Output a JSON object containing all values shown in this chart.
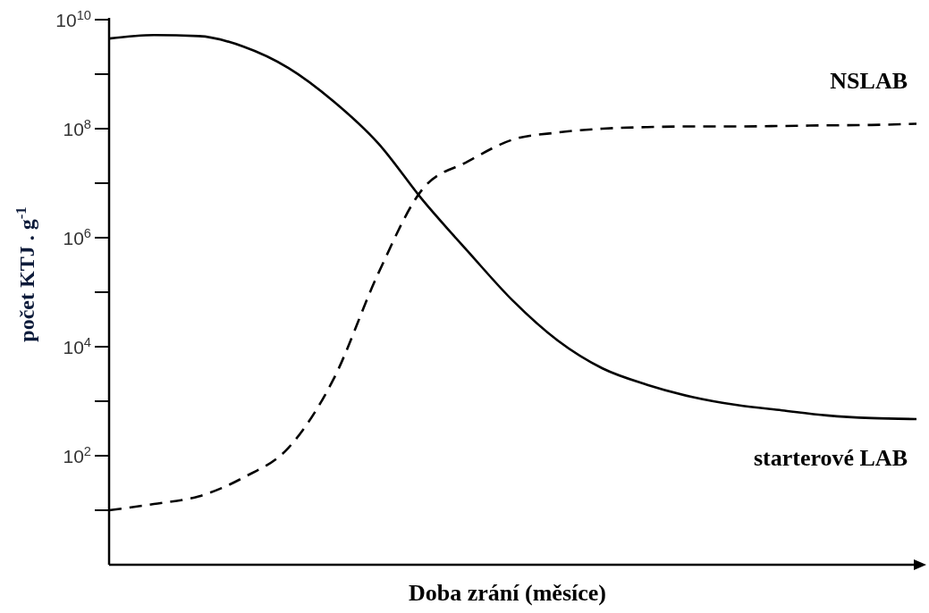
{
  "chart_data": {
    "type": "line",
    "xlabel": "Doba zrání (měsíce)",
    "ylabel": "počet KTJ . g$^{-1}$",
    "categories": [
      null,
      null,
      null,
      null,
      null,
      null,
      null,
      null,
      null,
      null,
      null,
      null,
      null,
      null,
      null,
      null,
      null,
      null,
      null
    ],
    "series": [
      {
        "name": "NSLAB",
        "color": "#000000",
        "line_style": "dashed",
        "values": [
          10,
          13,
          18,
          40,
          140,
          2500,
          220000,
          8000000,
          25000000,
          63000000,
          85000000,
          100000000,
          107000000,
          110000000,
          110000000,
          112000000,
          115000000,
          117000000,
          123000000
        ]
      },
      {
        "name": "starterové LAB",
        "color": "#000000",
        "line_style": "solid",
        "values": [
          4500000000,
          5200000000,
          5000000000,
          3200000000,
          1300000000,
          320000000,
          54000000,
          4800000,
          560000,
          70000,
          13000,
          4000,
          2000,
          1200,
          850,
          680,
          550,
          490,
          470
        ]
      }
    ],
    "log": "y",
    "ylim": [
      1,
      10000000000
    ],
    "yticks": [
      {
        "value": 10,
        "label": null
      },
      {
        "value": 100,
        "label": "10$^{2}$"
      },
      {
        "value": 1000,
        "label": null
      },
      {
        "value": 10000,
        "label": "10$^{4}$"
      },
      {
        "value": 100000,
        "label": null
      },
      {
        "value": 1000000,
        "label": "10$^{6}$"
      },
      {
        "value": 10000000,
        "label": null
      },
      {
        "value": 100000000,
        "label": "10$^{8}$"
      },
      {
        "value": 1000000000,
        "label": null
      },
      {
        "value": 10000000000,
        "label": "10$^{10}$"
      }
    ],
    "tick_labels": "y",
    "grid": false
  }
}
